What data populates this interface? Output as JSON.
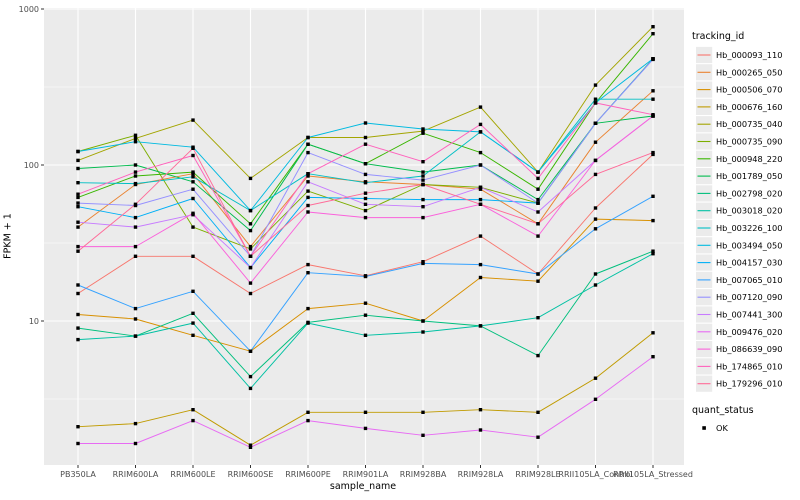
{
  "chart_data": {
    "type": "line",
    "title": "",
    "xlabel": "sample_name",
    "ylabel": "FPKM + 1",
    "y_scale": "log10",
    "ylim": [
      1.2,
      1000
    ],
    "y_ticks": [
      {
        "value": 10,
        "label": "10"
      },
      {
        "value": 100,
        "label": "100"
      },
      {
        "value": 1000,
        "label": "1000"
      }
    ],
    "grid": "on",
    "categories": [
      "PB350LA",
      "RRIM600LA",
      "RRIM600LE",
      "RRIM600SE",
      "RRIM600PE",
      "RRIM901LA",
      "RRIM928BA",
      "RRIM928LA",
      "RRIM928LE",
      "RRII105LA_Control",
      "RRII105LA_Stressed"
    ],
    "series": [
      {
        "name": "Hb_000093_110",
        "color": "#F8766D",
        "values": [
          15,
          26,
          26,
          15,
          23,
          19.5,
          24,
          35,
          20,
          53,
          117
        ]
      },
      {
        "name": "Hb_000265_050",
        "color": "#EA8331",
        "values": [
          40,
          75,
          88,
          30,
          85,
          78,
          75,
          70,
          42,
          140,
          299
        ]
      },
      {
        "name": "Hb_000506_070",
        "color": "#D89000",
        "values": [
          11,
          10.3,
          8.1,
          6.4,
          12,
          13,
          10,
          19,
          18,
          45,
          44
        ]
      },
      {
        "name": "Hb_000676_160",
        "color": "#C09B00",
        "values": [
          2.1,
          2.2,
          2.7,
          1.6,
          2.6,
          2.6,
          2.6,
          2.7,
          2.6,
          4.3,
          8.4
        ]
      },
      {
        "name": "Hb_000735_040",
        "color": "#A3A500",
        "values": [
          107,
          148,
          194,
          82,
          150,
          150,
          165,
          235,
          90,
          325,
          770
        ]
      },
      {
        "name": "Hb_000735_090",
        "color": "#7CAE00",
        "values": [
          122,
          155,
          40,
          29,
          68,
          51,
          75,
          72,
          57,
          185,
          480
        ]
      },
      {
        "name": "Hb_000948_220",
        "color": "#39B600",
        "values": [
          62,
          85,
          90,
          42,
          136,
          102,
          160,
          120,
          70,
          250,
          695
        ]
      },
      {
        "name": "Hb_001789_050",
        "color": "#00BB4E",
        "values": [
          95,
          100,
          78,
          38,
          136,
          102,
          90,
          100,
          60,
          185,
          206
        ]
      },
      {
        "name": "Hb_002798_020",
        "color": "#00BF7D",
        "values": [
          9,
          8,
          11.2,
          4.4,
          9.8,
          10.9,
          10,
          9.3,
          6,
          20,
          28
        ]
      },
      {
        "name": "Hb_003018_020",
        "color": "#00C1A3",
        "values": [
          7.6,
          8,
          9.7,
          3.7,
          9.7,
          8.1,
          8.5,
          9.3,
          10.5,
          17,
          27
        ]
      },
      {
        "name": "Hb_003226_100",
        "color": "#00BFC4",
        "values": [
          77,
          76,
          84,
          51,
          88,
          77,
          85,
          163,
          90,
          264,
          264
        ]
      },
      {
        "name": "Hb_003494_050",
        "color": "#00BAE0",
        "values": [
          122,
          141,
          130,
          51,
          150,
          186,
          170,
          163,
          90,
          250,
          480
        ]
      },
      {
        "name": "Hb_004157_030",
        "color": "#00B0F6",
        "values": [
          54,
          46,
          61,
          22,
          62,
          61,
          60,
          60,
          57,
          185,
          478
        ]
      },
      {
        "name": "Hb_007065_010",
        "color": "#35A2FF",
        "values": [
          17,
          12,
          15.5,
          6.4,
          20.4,
          19.3,
          23.4,
          23,
          20,
          39,
          63
        ]
      },
      {
        "name": "Hb_007120_090",
        "color": "#9590FF",
        "values": [
          57,
          55,
          70,
          26,
          120,
          87,
          80,
          100,
          57,
          185,
          475
        ]
      },
      {
        "name": "Hb_007441_300",
        "color": "#C77CFF",
        "values": [
          43,
          40,
          48,
          22,
          78,
          56,
          54,
          72,
          50,
          107,
          206
        ]
      },
      {
        "name": "Hb_009476_020",
        "color": "#E76BF3",
        "values": [
          1.64,
          1.64,
          2.3,
          1.55,
          2.3,
          2.05,
          1.85,
          2,
          1.8,
          3.15,
          5.9
        ]
      },
      {
        "name": "Hb_086639_090",
        "color": "#FA62DB",
        "values": [
          30,
          30,
          49,
          17.5,
          50,
          46,
          46,
          56,
          35,
          107,
          206
        ]
      },
      {
        "name": "Hb_174865_010",
        "color": "#FF62BC",
        "values": [
          65,
          90,
          115,
          26,
          88,
          136,
          105,
          182,
          82,
          250,
          210
        ]
      },
      {
        "name": "Hb_179296_010",
        "color": "#FF6A98",
        "values": [
          28,
          56,
          128,
          26,
          55,
          66,
          75,
          56,
          42,
          87,
          120
        ]
      }
    ],
    "legend": {
      "position": "right",
      "color_title": "tracking_id",
      "shape_title": "quant_status",
      "shape_items": [
        {
          "label": "OK",
          "shape": "filled-square",
          "color": "#000000"
        }
      ]
    },
    "point_color": "#000000",
    "point_shape": "filled-square",
    "colors": {
      "panel_bg": "#EBEBEB",
      "grid_major": "#FFFFFF",
      "grid_minor": "#F7F7F7",
      "tick_label": "#4D4D4D",
      "tick_mark": "#333333",
      "legend_key_bg": "#EBEBEB"
    }
  }
}
